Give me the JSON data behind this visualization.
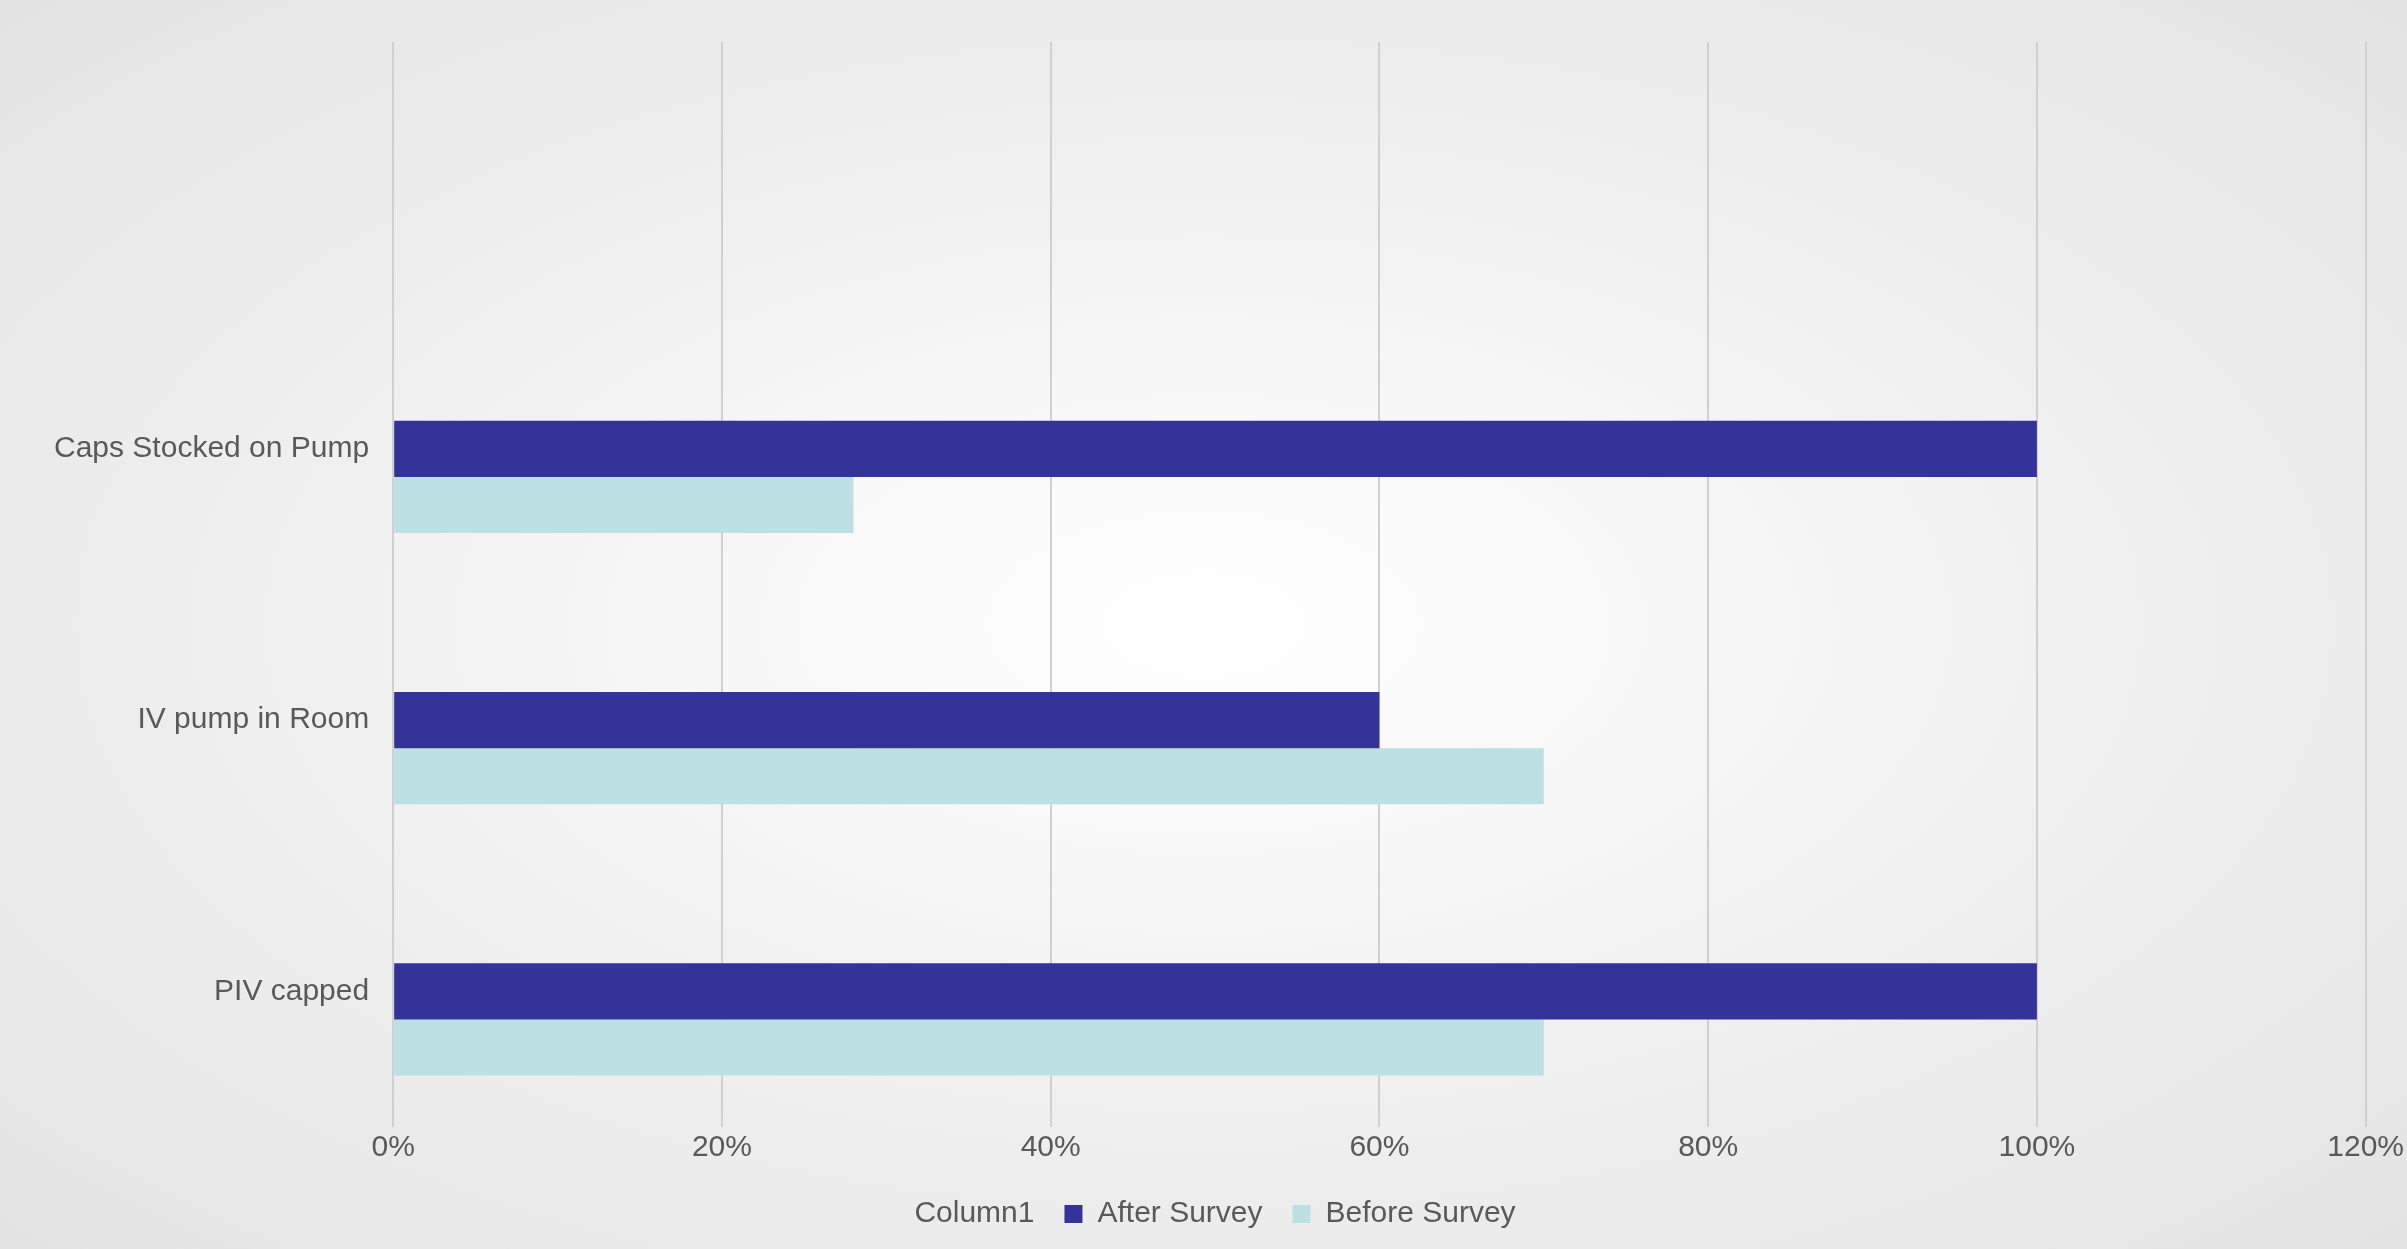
{
  "chart_data": {
    "type": "bar",
    "orientation": "horizontal",
    "categories": [
      null,
      "Caps Stocked on Pump",
      "IV pump in Room",
      "PIV capped"
    ],
    "series": [
      {
        "name": "Column1",
        "values": [
          null,
          null,
          null,
          null
        ]
      },
      {
        "name": "After Survey",
        "color": "#333399",
        "values": [
          null,
          100,
          60,
          100
        ]
      },
      {
        "name": "Before Survey",
        "color": "#bce0e3",
        "values": [
          null,
          28,
          70,
          70
        ]
      }
    ],
    "xlim": [
      0,
      120
    ],
    "xticks": [
      {
        "value": 0,
        "label": "0%"
      },
      {
        "value": 20,
        "label": "20%"
      },
      {
        "value": 40,
        "label": "40%"
      },
      {
        "value": 60,
        "label": "60%"
      },
      {
        "value": 80,
        "label": "80%"
      },
      {
        "value": 100,
        "label": "100%"
      },
      {
        "value": 120,
        "label": "120%"
      }
    ],
    "grid": "x",
    "legend": "bottom"
  }
}
